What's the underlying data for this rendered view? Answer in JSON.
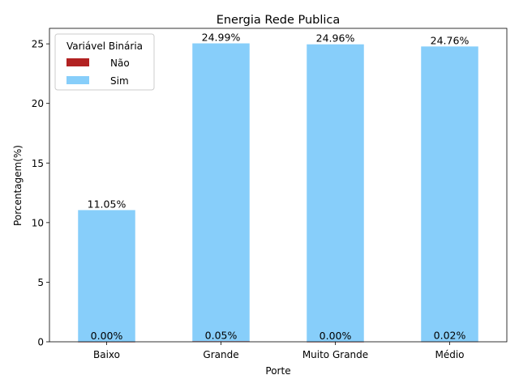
{
  "chart_data": {
    "type": "bar",
    "stacked": true,
    "title": "Energia Rede Publica",
    "xlabel": "Porte",
    "ylabel": "Porcentagem(%)",
    "categories": [
      "Baixo",
      "Grande",
      "Muito Grande",
      "Médio"
    ],
    "ylim": [
      0,
      26.3
    ],
    "yticks": [
      0,
      5,
      10,
      15,
      20,
      25
    ],
    "grid": false,
    "legend": {
      "title": "Variável Binária",
      "placement": "top-left"
    },
    "series": [
      {
        "name": "Não",
        "color": "#b22222",
        "values": [
          0.0,
          0.05,
          0.0,
          0.02
        ],
        "labels": [
          "0.00%",
          "0.05%",
          "0.00%",
          "0.02%"
        ]
      },
      {
        "name": "Sim",
        "color": "#87cefa",
        "values": [
          11.05,
          24.99,
          24.96,
          24.76
        ],
        "labels": [
          "11.05%",
          "24.99%",
          "24.96%",
          "24.76%"
        ]
      }
    ]
  }
}
